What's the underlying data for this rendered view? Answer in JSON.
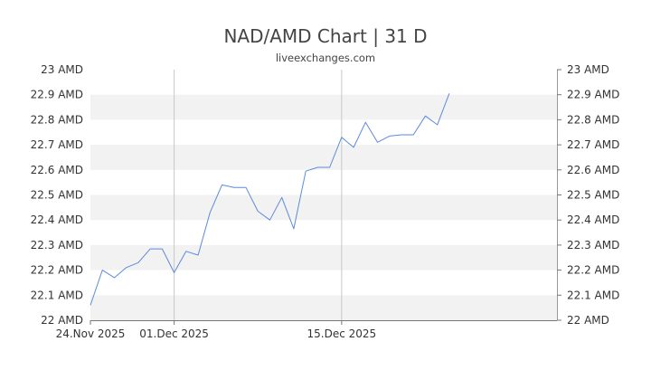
{
  "chart_data": {
    "type": "line",
    "title": "NAD/AMD Chart | 31 D",
    "subtitle": "liveexchanges.com",
    "ylim": [
      22.0,
      23.0
    ],
    "y_ticks": [
      22.0,
      22.1,
      22.2,
      22.3,
      22.4,
      22.5,
      22.6,
      22.7,
      22.8,
      22.9,
      23.0
    ],
    "y_tick_labels": [
      "22 AMD",
      "22.1 AMD",
      "22.2 AMD",
      "22.3 AMD",
      "22.4 AMD",
      "22.5 AMD",
      "22.6 AMD",
      "22.7 AMD",
      "22.8 AMD",
      "22.9 AMD",
      "23 AMD"
    ],
    "x_ticks": [
      {
        "date": "2025-11-24",
        "label": "24.Nov 2025",
        "gridline": false
      },
      {
        "date": "2025-12-01",
        "label": "01.Dec 2025",
        "gridline": true
      },
      {
        "date": "2025-12-15",
        "label": "15.Dec 2025",
        "gridline": true
      }
    ],
    "xlim": [
      "2025-11-24",
      "2026-01-02"
    ],
    "grid": "alternating horizontal bands",
    "series": [
      {
        "color": "#5b8bd9",
        "points": [
          {
            "x": "2025-11-24",
            "y": 22.06
          },
          {
            "x": "2025-11-25",
            "y": 22.2
          },
          {
            "x": "2025-11-26",
            "y": 22.17
          },
          {
            "x": "2025-11-27",
            "y": 22.21
          },
          {
            "x": "2025-11-28",
            "y": 22.23
          },
          {
            "x": "2025-11-29",
            "y": 22.285
          },
          {
            "x": "2025-11-30",
            "y": 22.285
          },
          {
            "x": "2025-12-01",
            "y": 22.19
          },
          {
            "x": "2025-12-02",
            "y": 22.275
          },
          {
            "x": "2025-12-03",
            "y": 22.26
          },
          {
            "x": "2025-12-04",
            "y": 22.43
          },
          {
            "x": "2025-12-05",
            "y": 22.54
          },
          {
            "x": "2025-12-06",
            "y": 22.53
          },
          {
            "x": "2025-12-07",
            "y": 22.53
          },
          {
            "x": "2025-12-08",
            "y": 22.435
          },
          {
            "x": "2025-12-09",
            "y": 22.4
          },
          {
            "x": "2025-12-10",
            "y": 22.49
          },
          {
            "x": "2025-12-11",
            "y": 22.365
          },
          {
            "x": "2025-12-12",
            "y": 22.595
          },
          {
            "x": "2025-12-13",
            "y": 22.61
          },
          {
            "x": "2025-12-14",
            "y": 22.61
          },
          {
            "x": "2025-12-15",
            "y": 22.73
          },
          {
            "x": "2025-12-16",
            "y": 22.69
          },
          {
            "x": "2025-12-17",
            "y": 22.79
          },
          {
            "x": "2025-12-18",
            "y": 22.71
          },
          {
            "x": "2025-12-19",
            "y": 22.735
          },
          {
            "x": "2025-12-20",
            "y": 22.74
          },
          {
            "x": "2025-12-21",
            "y": 22.74
          },
          {
            "x": "2025-12-22",
            "y": 22.815
          },
          {
            "x": "2025-12-23",
            "y": 22.78
          },
          {
            "x": "2025-12-24",
            "y": 22.905
          }
        ]
      }
    ]
  }
}
